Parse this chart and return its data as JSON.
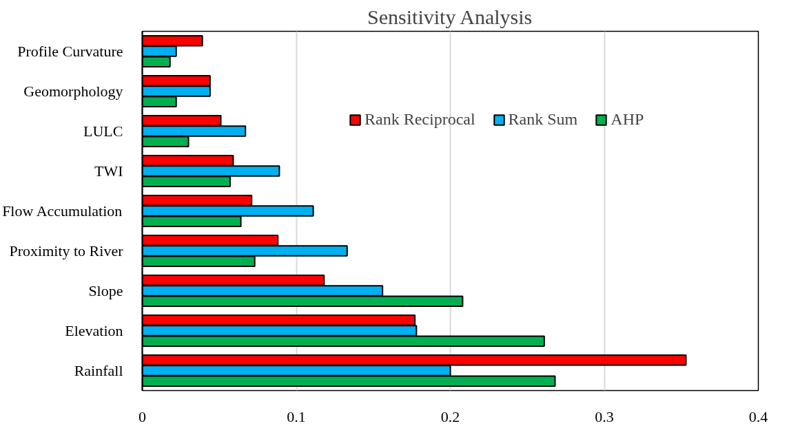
{
  "chart_data": {
    "type": "bar",
    "orientation": "horizontal",
    "title": "Sensitivity Analysis",
    "categories": [
      "Profile Curvature",
      "Geomorphology",
      "LULC",
      "TWI",
      "Flow Accumulation",
      "Proximity to River",
      "Slope",
      "Elevation",
      "Rainfall"
    ],
    "series": [
      {
        "name": "Rank Reciprocal",
        "color": "#ff0000",
        "values": [
          0.039,
          0.044,
          0.051,
          0.059,
          0.071,
          0.088,
          0.118,
          0.177,
          0.353
        ]
      },
      {
        "name": "Rank Sum",
        "color": "#00b0f0",
        "values": [
          0.022,
          0.044,
          0.067,
          0.089,
          0.111,
          0.133,
          0.156,
          0.178,
          0.2
        ]
      },
      {
        "name": "AHP",
        "color": "#00b050",
        "values": [
          0.018,
          0.022,
          0.03,
          0.057,
          0.064,
          0.073,
          0.208,
          0.261,
          0.268
        ]
      }
    ],
    "xlim": [
      0,
      0.4
    ],
    "xticks": [
      0,
      0.1,
      0.2,
      0.3,
      0.4
    ],
    "grid": "x",
    "legend": "top right"
  }
}
